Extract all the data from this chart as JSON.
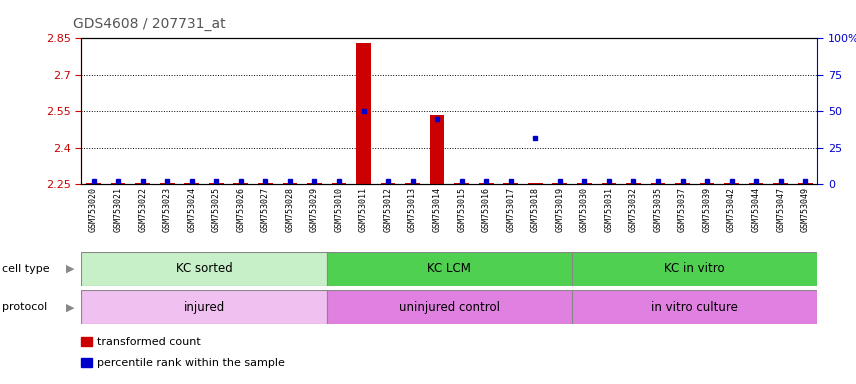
{
  "title": "GDS4608 / 207731_at",
  "samples": [
    "GSM753020",
    "GSM753021",
    "GSM753022",
    "GSM753023",
    "GSM753024",
    "GSM753025",
    "GSM753026",
    "GSM753027",
    "GSM753028",
    "GSM753029",
    "GSM753010",
    "GSM753011",
    "GSM753012",
    "GSM753013",
    "GSM753014",
    "GSM753015",
    "GSM753016",
    "GSM753017",
    "GSM753018",
    "GSM753019",
    "GSM753030",
    "GSM753031",
    "GSM753032",
    "GSM753035",
    "GSM753037",
    "GSM753039",
    "GSM753042",
    "GSM753044",
    "GSM753047",
    "GSM753049"
  ],
  "red_values": [
    2.255,
    2.255,
    2.255,
    2.255,
    2.255,
    2.255,
    2.255,
    2.255,
    2.255,
    2.255,
    2.255,
    2.83,
    2.255,
    2.255,
    2.535,
    2.255,
    2.255,
    2.255,
    2.255,
    2.255,
    2.255,
    2.255,
    2.255,
    2.255,
    2.255,
    2.255,
    2.255,
    2.255,
    2.255,
    2.255
  ],
  "blue_values": [
    2,
    2,
    2,
    2,
    2,
    2,
    2,
    2,
    2,
    2,
    2,
    50,
    2,
    2,
    45,
    2,
    2,
    2,
    32,
    2,
    2,
    2,
    2,
    2,
    2,
    2,
    2,
    2,
    2,
    2
  ],
  "ymin": 2.25,
  "ymax": 2.85,
  "yticks_left": [
    2.25,
    2.4,
    2.55,
    2.7,
    2.85
  ],
  "yticks_right": [
    0,
    25,
    50,
    75,
    100
  ],
  "ytick_labels_right": [
    "0",
    "25",
    "50",
    "75",
    "100%"
  ],
  "cell_type_groups": [
    {
      "label": "KC sorted",
      "start": 0,
      "end": 10,
      "color": "#C8F0C8"
    },
    {
      "label": "KC LCM",
      "start": 10,
      "end": 20,
      "color": "#50D050"
    },
    {
      "label": "KC in vitro",
      "start": 20,
      "end": 30,
      "color": "#50D050"
    }
  ],
  "protocol_groups": [
    {
      "label": "injured",
      "start": 0,
      "end": 10,
      "color": "#F0C0F0"
    },
    {
      "label": "uninjured control",
      "start": 10,
      "end": 20,
      "color": "#E080E0"
    },
    {
      "label": "in vitro culture",
      "start": 20,
      "end": 30,
      "color": "#E080E0"
    }
  ],
  "cell_type_label": "cell type",
  "protocol_label": "protocol",
  "legend_items": [
    {
      "label": "transformed count",
      "color": "#CC0000"
    },
    {
      "label": "percentile rank within the sample",
      "color": "#0000CC"
    }
  ],
  "title_color": "#555555",
  "left_axis_color": "#CC0000",
  "right_axis_color": "#0000CC",
  "bar_color": "#CC0000",
  "dot_color": "#0000CC",
  "bg_color": "#FFFFFF",
  "xtick_bg": "#E0E0E0"
}
